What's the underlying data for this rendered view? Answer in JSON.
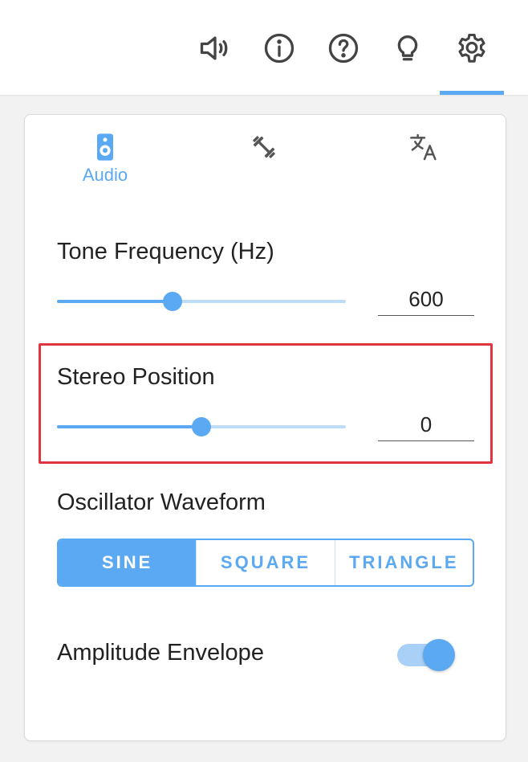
{
  "toolbar": {
    "icons": [
      "volume-icon",
      "info-icon",
      "help-icon",
      "lightbulb-icon",
      "settings-icon"
    ],
    "active": "settings-icon"
  },
  "tabs": [
    {
      "icon": "speaker-icon",
      "label": "Audio",
      "active": true
    },
    {
      "icon": "exercise-icon",
      "label": "",
      "active": false
    },
    {
      "icon": "translate-icon",
      "label": "",
      "active": false
    }
  ],
  "settings": {
    "tone_frequency": {
      "label": "Tone Frequency (Hz)",
      "value": "600",
      "slider_fraction": 0.4
    },
    "stereo_position": {
      "label": "Stereo Position",
      "value": "0",
      "slider_fraction": 0.5
    },
    "oscillator_waveform": {
      "label": "Oscillator Waveform",
      "options": [
        "SINE",
        "SQUARE",
        "TRIANGLE"
      ],
      "selected": "SINE"
    },
    "amplitude_envelope": {
      "label": "Amplitude Envelope",
      "enabled": true
    }
  },
  "colors": {
    "accent": "#5aa9f2",
    "accent_light": "#bcdcf8",
    "highlight": "#e0353f"
  }
}
